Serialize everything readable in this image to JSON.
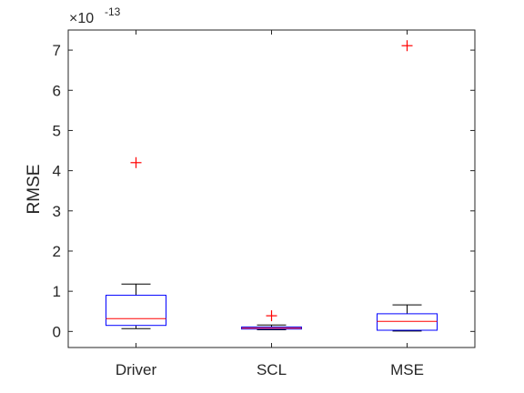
{
  "chart_data": {
    "type": "boxplot",
    "title": "",
    "xlabel": "",
    "ylabel": "RMSE",
    "y_scale_note": "×10^-13",
    "y_exponent_label": {
      "base": "×10",
      "exponent": "-13"
    },
    "ylim": [
      -0.4,
      7.5
    ],
    "y_ticks": [
      0,
      1,
      2,
      3,
      4,
      5,
      6,
      7
    ],
    "y_tick_labels": [
      "0",
      "1",
      "2",
      "3",
      "4",
      "5",
      "6",
      "7"
    ],
    "categories": [
      "Driver",
      "SCL",
      "MSE"
    ],
    "boxes": [
      {
        "name": "Driver",
        "whisker_low": 0.07,
        "q1": 0.15,
        "median": 0.32,
        "q3": 0.9,
        "whisker_high": 1.18,
        "outliers": [
          4.2
        ]
      },
      {
        "name": "SCL",
        "whisker_low": 0.04,
        "q1": 0.06,
        "median": 0.08,
        "q3": 0.11,
        "whisker_high": 0.16,
        "outliers": [
          0.39
        ]
      },
      {
        "name": "MSE",
        "whisker_low": 0.01,
        "q1": 0.03,
        "median": 0.25,
        "q3": 0.44,
        "whisker_high": 0.66,
        "outliers": [
          7.11
        ]
      }
    ],
    "grid": false,
    "colors": {
      "box": "#0000ff",
      "median": "#ff0000",
      "whisker": "#000000",
      "outlier": "#ff0000",
      "axis": "#262626"
    }
  }
}
